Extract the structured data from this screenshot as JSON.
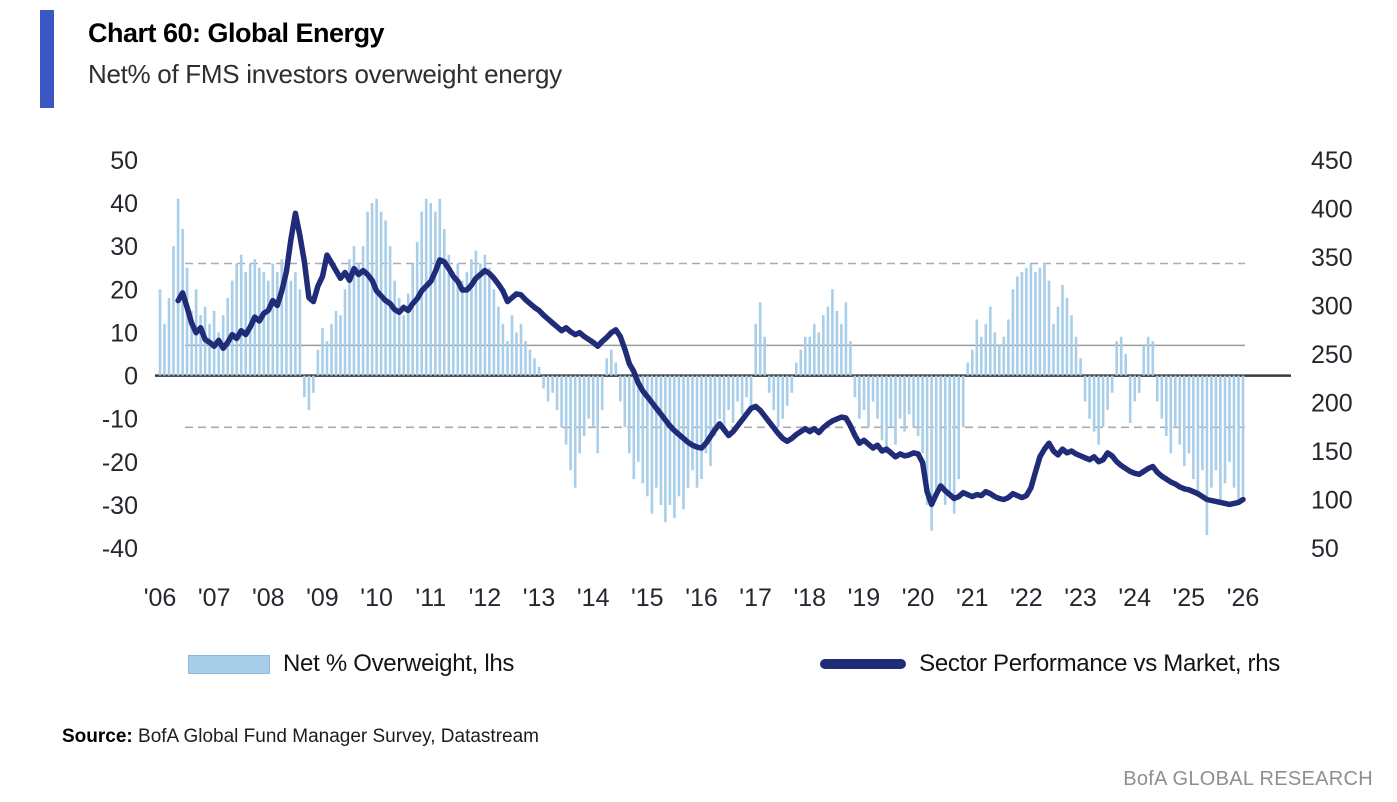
{
  "header": {
    "title": "Chart 60: Global Energy",
    "subtitle": "Net% of FMS investors overweight energy",
    "accent_color": "#3b57c4"
  },
  "legend": {
    "bar_label": "Net % Overweight, lhs",
    "line_label": "Sector Performance vs Market, rhs"
  },
  "source": {
    "label": "Source:",
    "text": " BofA Global Fund Manager Survey, Datastream"
  },
  "footer": {
    "brand": "BofA GLOBAL RESEARCH"
  },
  "colors": {
    "bar": "#a8cee9",
    "line": "#202c78",
    "zero_line": "#3a3a3a",
    "grid_solid": "#9b9b9b",
    "grid_dashed": "#ababab",
    "axis_text": "#26262e"
  },
  "chart_data": {
    "type": "bar",
    "subtype": "combo bar+line, dual y-axis, monthly data",
    "title": "Net% of FMS investors overweight energy",
    "x_axis": {
      "start_year": 2006,
      "frequency": "monthly",
      "tick_labels": [
        "'06",
        "'07",
        "'08",
        "'09",
        "'10",
        "'11",
        "'12",
        "'13",
        "'14",
        "'15",
        "'16",
        "'17",
        "'18",
        "'19",
        "'20",
        "'21",
        "'22",
        "'23",
        "'24",
        "'25",
        "'26"
      ]
    },
    "left_axis": {
      "ticks": [
        50,
        40,
        30,
        20,
        10,
        0,
        -10,
        -20,
        -30,
        -40
      ],
      "range": [
        -40,
        50
      ]
    },
    "right_axis": {
      "ticks": [
        450,
        400,
        350,
        300,
        250,
        200,
        150,
        100,
        50
      ],
      "range": [
        50,
        450
      ]
    },
    "reference_lines": [
      {
        "axis": "left",
        "value": 26,
        "style": "dashed"
      },
      {
        "axis": "left",
        "value": 7,
        "style": "solid"
      },
      {
        "axis": "left",
        "value": -12,
        "style": "dashed"
      },
      {
        "axis": "left",
        "value": 0,
        "style": "zero"
      }
    ],
    "series": [
      {
        "name": "Net % Overweight, lhs",
        "type": "bar",
        "axis": "left",
        "values": [
          20,
          12,
          18,
          30,
          41,
          34,
          25,
          15,
          20,
          14,
          16,
          12,
          15,
          10,
          14,
          18,
          22,
          26,
          28,
          24,
          26,
          27,
          25,
          24,
          22,
          26,
          24,
          27,
          25,
          22,
          24,
          20,
          -5,
          -8,
          -4,
          6,
          11,
          8,
          12,
          15,
          14,
          20,
          27,
          30,
          26,
          30,
          38,
          40,
          41,
          38,
          36,
          30,
          22,
          18,
          14,
          19,
          26,
          31,
          38,
          41,
          40,
          38,
          41,
          34,
          28,
          24,
          26,
          22,
          24,
          27,
          29,
          26,
          28,
          25,
          20,
          16,
          12,
          8,
          14,
          10,
          12,
          8,
          6,
          4,
          2,
          -3,
          -6,
          -4,
          -8,
          -12,
          -16,
          -22,
          -26,
          -18,
          -14,
          -10,
          -12,
          -18,
          -8,
          4,
          6,
          3,
          -6,
          -12,
          -18,
          -24,
          -20,
          -25,
          -28,
          -32,
          -26,
          -30,
          -34,
          -30,
          -33,
          -28,
          -31,
          -26,
          -22,
          -26,
          -24,
          -18,
          -21,
          -14,
          -10,
          -12,
          -8,
          -11,
          -6,
          -9,
          -5,
          -8,
          12,
          17,
          9,
          -4,
          -8,
          -12,
          -10,
          -7,
          -4,
          3,
          6,
          9,
          9,
          12,
          10,
          14,
          16,
          20,
          15,
          12,
          17,
          8,
          -5,
          -10,
          -8,
          -12,
          -6,
          -10,
          -15,
          -18,
          -12,
          -16,
          -10,
          -13,
          -9,
          -12,
          -14,
          -18,
          -30,
          -36,
          -28,
          -25,
          -30,
          -27,
          -32,
          -24,
          -12,
          3,
          6,
          13,
          9,
          12,
          16,
          10,
          7,
          9,
          13,
          20,
          23,
          24,
          25,
          26,
          24,
          25,
          26,
          22,
          12,
          16,
          21,
          18,
          14,
          9,
          4,
          -6,
          -10,
          -13,
          -16,
          -12,
          -8,
          -4,
          8,
          9,
          5,
          -11,
          -6,
          -4,
          7,
          9,
          8,
          -6,
          -10,
          -14,
          -18,
          -12,
          -16,
          -21,
          -18,
          -24,
          -28,
          -22,
          -37,
          -26,
          -22,
          -30,
          -25,
          -20,
          -26,
          -30,
          -28
        ]
      },
      {
        "name": "Sector Performance vs Market, rhs",
        "type": "line",
        "axis": "right",
        "values": [
          null,
          null,
          null,
          null,
          305,
          313,
          298,
          282,
          272,
          277,
          265,
          262,
          258,
          264,
          256,
          262,
          270,
          266,
          274,
          270,
          278,
          288,
          284,
          292,
          295,
          305,
          300,
          315,
          335,
          368,
          395,
          372,
          345,
          308,
          304,
          320,
          330,
          352,
          344,
          336,
          328,
          334,
          326,
          338,
          332,
          336,
          332,
          326,
          315,
          310,
          305,
          302,
          296,
          293,
          298,
          295,
          302,
          307,
          315,
          320,
          325,
          335,
          347,
          345,
          338,
          330,
          325,
          316,
          316,
          321,
          328,
          332,
          336,
          333,
          328,
          322,
          315,
          304,
          308,
          312,
          311,
          306,
          302,
          298,
          295,
          290,
          286,
          282,
          278,
          274,
          277,
          273,
          270,
          272,
          268,
          265,
          262,
          258,
          263,
          267,
          272,
          275,
          268,
          255,
          240,
          232,
          220,
          212,
          206,
          200,
          194,
          188,
          182,
          176,
          171,
          167,
          163,
          159,
          156,
          154,
          153,
          158,
          165,
          172,
          178,
          172,
          166,
          170,
          176,
          182,
          188,
          194,
          196,
          192,
          186,
          180,
          174,
          168,
          163,
          160,
          163,
          167,
          170,
          173,
          170,
          173,
          169,
          174,
          178,
          181,
          183,
          185,
          184,
          176,
          166,
          158,
          161,
          157,
          153,
          156,
          150,
          152,
          148,
          144,
          147,
          145,
          146,
          148,
          147,
          138,
          108,
          95,
          105,
          114,
          109,
          105,
          101,
          103,
          107,
          105,
          103,
          105,
          104,
          108,
          106,
          103,
          101,
          100,
          102,
          106,
          104,
          102,
          104,
          112,
          128,
          144,
          152,
          158,
          150,
          146,
          152,
          148,
          150,
          147,
          145,
          143,
          141,
          144,
          139,
          141,
          148,
          145,
          139,
          135,
          132,
          129,
          127,
          126,
          129,
          132,
          134,
          128,
          124,
          121,
          118,
          116,
          113,
          111,
          110,
          108,
          106,
          103,
          100,
          99,
          98,
          97,
          96,
          95,
          96,
          97,
          100
        ]
      }
    ]
  }
}
